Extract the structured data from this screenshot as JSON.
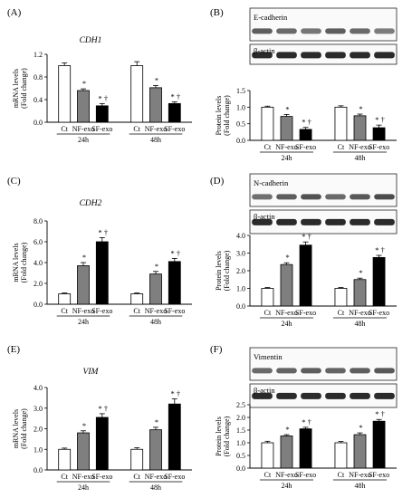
{
  "figure": {
    "bands": [
      "E-cadherin",
      "N-cadherin",
      "Vimentin"
    ],
    "loading_control": "β-actin"
  },
  "chart_data": [
    {
      "id": "A",
      "panel_label": "(A)",
      "type": "bar",
      "title": "CDH1",
      "title_italic": true,
      "ylabel": [
        "mRNA levels",
        "(Fold change)"
      ],
      "ylim": [
        0,
        1.2
      ],
      "yticks": [
        "0.0",
        "0.4",
        "0.8",
        "1.2"
      ],
      "categories": [
        "Ct",
        "NF-exo",
        "SF-exo",
        "Ct",
        "NF-exo",
        "SF-exo"
      ],
      "groups": [
        "24h",
        "48h"
      ],
      "values": [
        1.0,
        0.56,
        0.29,
        1.0,
        0.61,
        0.33
      ],
      "errors": [
        0.05,
        0.03,
        0.04,
        0.07,
        0.04,
        0.03
      ],
      "annotations": [
        "",
        "*",
        "* †",
        "",
        "*",
        "* †"
      ],
      "colors": [
        "#ffffff",
        "#7f7f7f",
        "#000000",
        "#ffffff",
        "#7f7f7f",
        "#000000"
      ]
    },
    {
      "id": "B",
      "panel_label": "(B)",
      "type": "bar",
      "title": "",
      "ylabel": [
        "Protein levels",
        "(Fold change)"
      ],
      "ylim": [
        0,
        1.5
      ],
      "yticks": [
        "0.0",
        "0.5",
        "1.0",
        "1.5"
      ],
      "categories": [
        "Ct",
        "NF-exo",
        "SF-exo",
        "Ct",
        "NF-exo",
        "SF-exo"
      ],
      "groups": [
        "24h",
        "48h"
      ],
      "values": [
        1.0,
        0.72,
        0.33,
        1.0,
        0.74,
        0.38
      ],
      "errors": [
        0.03,
        0.06,
        0.06,
        0.04,
        0.05,
        0.08
      ],
      "annotations": [
        "",
        "*",
        "* †",
        "",
        "*",
        "* †"
      ],
      "colors": [
        "#ffffff",
        "#7f7f7f",
        "#000000",
        "#ffffff",
        "#7f7f7f",
        "#000000"
      ],
      "blot": {
        "label": "E-cadherin",
        "intensity": [
          0.55,
          0.45,
          0.35,
          0.55,
          0.45,
          0.3
        ]
      }
    },
    {
      "id": "C",
      "panel_label": "(C)",
      "type": "bar",
      "title": "CDH2",
      "title_italic": true,
      "ylabel": [
        "mRNA levels",
        "(Fold change)"
      ],
      "ylim": [
        0,
        8.0
      ],
      "yticks": [
        "0.0",
        "2.0",
        "4.0",
        "6.0",
        "8.0"
      ],
      "categories": [
        "Ct",
        "NF-exo",
        "SF-exo",
        "Ct",
        "NF-exo",
        "SF-exo"
      ],
      "groups": [
        "24h",
        "48h"
      ],
      "values": [
        1.0,
        3.7,
        6.0,
        1.0,
        2.9,
        4.1
      ],
      "errors": [
        0.08,
        0.3,
        0.4,
        0.08,
        0.25,
        0.3
      ],
      "annotations": [
        "",
        "*",
        "* †",
        "",
        "*",
        "* †"
      ],
      "colors": [
        "#ffffff",
        "#7f7f7f",
        "#000000",
        "#ffffff",
        "#7f7f7f",
        "#000000"
      ]
    },
    {
      "id": "D",
      "panel_label": "(D)",
      "type": "bar",
      "title": "",
      "ylabel": [
        "Protein levels",
        "(Fold change)"
      ],
      "ylim": [
        0,
        4.0
      ],
      "yticks": [
        "0.0",
        "1.0",
        "2.0",
        "3.0",
        "4.0"
      ],
      "categories": [
        "Ct",
        "NF-exo",
        "SF-exo",
        "Ct",
        "NF-exo",
        "SF-exo"
      ],
      "groups": [
        "24h",
        "48h"
      ],
      "values": [
        1.0,
        2.35,
        3.45,
        1.0,
        1.5,
        2.75
      ],
      "errors": [
        0.05,
        0.1,
        0.18,
        0.05,
        0.08,
        0.12
      ],
      "annotations": [
        "",
        "*",
        "* †",
        "",
        "*",
        "* †"
      ],
      "colors": [
        "#ffffff",
        "#7f7f7f",
        "#000000",
        "#ffffff",
        "#7f7f7f",
        "#000000"
      ],
      "blot": {
        "label": "N-cadherin",
        "intensity": [
          0.4,
          0.55,
          0.65,
          0.45,
          0.6,
          0.7
        ]
      }
    },
    {
      "id": "E",
      "panel_label": "(E)",
      "type": "bar",
      "title": "VIM",
      "title_italic": true,
      "ylabel": [
        "mRNA levels",
        "(Fold change)"
      ],
      "ylim": [
        0,
        4.0
      ],
      "yticks": [
        "0.0",
        "1.0",
        "2.0",
        "3.0",
        "4.0"
      ],
      "categories": [
        "Ct",
        "NF-exo",
        "SF-exo",
        "Ct",
        "NF-exo",
        "SF-exo"
      ],
      "groups": [
        "24h",
        "48h"
      ],
      "values": [
        1.0,
        1.8,
        2.55,
        1.0,
        1.95,
        3.2
      ],
      "errors": [
        0.06,
        0.1,
        0.18,
        0.08,
        0.12,
        0.25
      ],
      "annotations": [
        "",
        "*",
        "* †",
        "",
        "*",
        "* †"
      ],
      "colors": [
        "#ffffff",
        "#7f7f7f",
        "#000000",
        "#ffffff",
        "#7f7f7f",
        "#000000"
      ]
    },
    {
      "id": "F",
      "panel_label": "(F)",
      "type": "bar",
      "title": "",
      "ylabel": [
        "Protein levels",
        "(Fold change)"
      ],
      "ylim": [
        0,
        2.5
      ],
      "yticks": [
        "0.0",
        "0.5",
        "1.0",
        "1.5",
        "2.0",
        "2.5"
      ],
      "categories": [
        "Ct",
        "NF-exo",
        "SF-exo",
        "Ct",
        "NF-exo",
        "SF-exo"
      ],
      "groups": [
        "24h",
        "48h"
      ],
      "values": [
        1.0,
        1.27,
        1.55,
        1.0,
        1.32,
        1.85
      ],
      "errors": [
        0.06,
        0.05,
        0.06,
        0.05,
        0.07,
        0.07
      ],
      "annotations": [
        "",
        "*",
        "* †",
        "",
        "*",
        "* †"
      ],
      "colors": [
        "#ffffff",
        "#7f7f7f",
        "#000000",
        "#ffffff",
        "#7f7f7f",
        "#000000"
      ],
      "blot": {
        "label": "Vimentin",
        "intensity": [
          0.45,
          0.5,
          0.55,
          0.5,
          0.55,
          0.6
        ]
      }
    }
  ]
}
